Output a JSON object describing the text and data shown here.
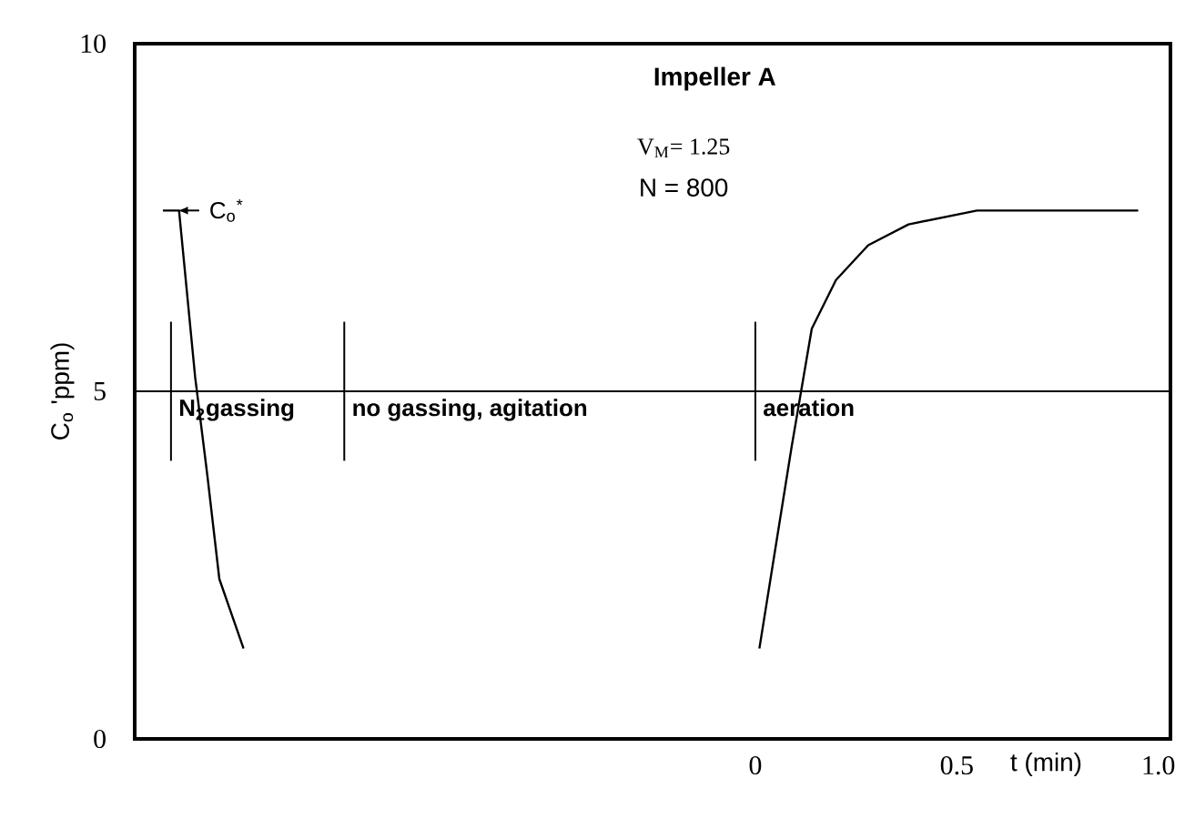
{
  "chart_data": {
    "type": "line",
    "title": "Impeller  A",
    "xlabel": "t (min)",
    "ylabel": "C$_{o}$ 'ppm)",
    "annotations": [
      "V$_{M}$= 1.25",
      "N = 800",
      {
        "text": "C$_{o}$$^{*}$",
        "x": -1.47,
        "y": 7.6
      }
    ],
    "series": [
      {
        "color": "#000000",
        "x": [
          -1.47,
          -1.43,
          -1.39,
          -1.36,
          -1.33,
          -1.27
        ],
        "values": [
          7.6,
          7.6,
          5.2,
          3.8,
          2.3,
          1.3
        ]
      },
      {
        "color": "#000000",
        "x": [
          0.01,
          0.09,
          0.14,
          0.2,
          0.28,
          0.38,
          0.55,
          0.71,
          0.95
        ],
        "values": [
          1.3,
          4.2,
          5.9,
          6.6,
          7.1,
          7.4,
          7.6,
          7.6,
          7.6
        ]
      }
    ],
    "ref_lines": [
      {
        "axis": "y",
        "value": 5
      },
      {
        "axis": "x",
        "value": -1.45,
        "label": "N$_{2}$gassing"
      },
      {
        "axis": "x",
        "value": -1.02,
        "label": "no gassing, agitation"
      },
      {
        "axis": "x",
        "value": 0,
        "label": "aeration"
      }
    ],
    "xlim": [
      -1.54,
      1.03
    ],
    "ylim": [
      0,
      10
    ],
    "xticks": [
      0,
      0.5,
      {
        "value": 1,
        "label": "1.0"
      }
    ],
    "yticks": [
      0,
      5,
      10
    ]
  }
}
